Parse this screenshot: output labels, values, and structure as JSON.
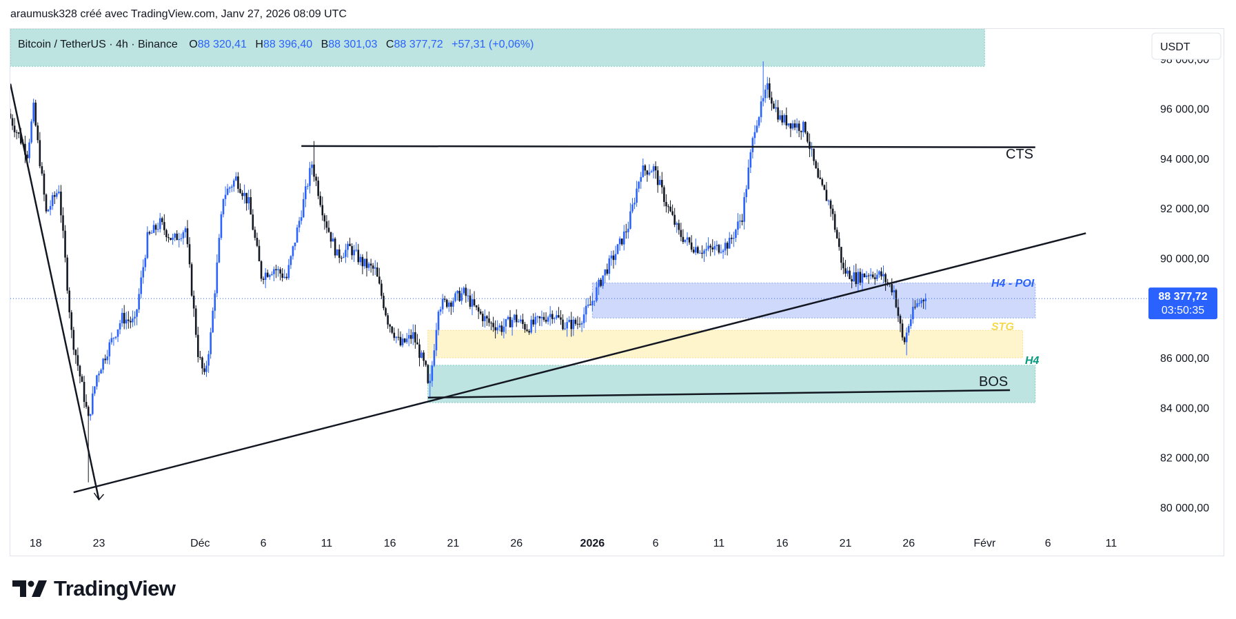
{
  "header": {
    "text": "araumusk328 créé avec TradingView.com, Janv 27, 2026 08:09 UTC"
  },
  "brand": {
    "name": "TradingView"
  },
  "colors": {
    "bull": "#2962ff",
    "bear": "#131722",
    "zone_green": "#b2dfdb",
    "zone_blue": "#c5d2fa",
    "zone_yellow": "#fff3c4",
    "price_label": "#2962ff",
    "text_blue": "#2962ff",
    "text_teal": "#089981",
    "text_yellow": "#f5d94a"
  },
  "legend": {
    "symbol": "Bitcoin / TetherUS · 4h · Binance",
    "o_label": "O",
    "o_value": "88 320,41",
    "h_label": "H",
    "h_value": "88 396,40",
    "b_label": "B",
    "b_value": "88 301,03",
    "c_label": "C",
    "c_value": "88 377,72",
    "change": "+57,31 (+0,06%)"
  },
  "currency_button": "USDT",
  "price_tag": {
    "price": "88 377,72",
    "countdown": "03:50:35"
  },
  "annotations": {
    "cts": "CTS",
    "bos": "BOS",
    "h4_poi": "H4 - POI",
    "stg": "STG",
    "h4": "H4"
  },
  "chart_data": {
    "type": "candlestick",
    "symbol": "Bitcoin / TetherUS",
    "interval": "4h",
    "exchange": "Binance",
    "y_axis": {
      "range": [
        79000,
        99200
      ],
      "ticks": [
        80000,
        82000,
        84000,
        86000,
        88000,
        90000,
        92000,
        94000,
        96000,
        98000
      ],
      "tick_labels": [
        "80 000,00",
        "82 000,00",
        "84 000,00",
        "86 000,00",
        "88 000,00",
        "90 000,00",
        "92 000,00",
        "94 000,00",
        "96 000,00",
        "98 000,00"
      ]
    },
    "x_axis": {
      "range": [
        "2025-11-16",
        "2026-02-14"
      ],
      "ticks": [
        {
          "date": "2025-11-18",
          "label": "18"
        },
        {
          "date": "2025-11-23",
          "label": "23"
        },
        {
          "date": "2025-12-01",
          "label": "Déc"
        },
        {
          "date": "2025-12-06",
          "label": "6"
        },
        {
          "date": "2025-12-11",
          "label": "11"
        },
        {
          "date": "2025-12-16",
          "label": "16"
        },
        {
          "date": "2025-12-21",
          "label": "21"
        },
        {
          "date": "2025-12-26",
          "label": "26"
        },
        {
          "date": "2026-01-01",
          "label": "2026",
          "bold": true
        },
        {
          "date": "2026-01-06",
          "label": "6"
        },
        {
          "date": "2026-01-11",
          "label": "11"
        },
        {
          "date": "2026-01-16",
          "label": "16"
        },
        {
          "date": "2026-01-21",
          "label": "21"
        },
        {
          "date": "2026-01-26",
          "label": "26"
        },
        {
          "date": "2026-02-01",
          "label": "Févr"
        },
        {
          "date": "2026-02-06",
          "label": "6"
        },
        {
          "date": "2026-02-11",
          "label": "11"
        }
      ]
    },
    "price_path": [
      [
        "2025-11-16T00:00",
        95800
      ],
      [
        "2025-11-17T12:00",
        94200
      ],
      [
        "2025-11-18T00:00",
        96000
      ],
      [
        "2025-11-19T00:00",
        91800
      ],
      [
        "2025-11-20T00:00",
        92800
      ],
      [
        "2025-11-21T00:00",
        87000
      ],
      [
        "2025-11-22T00:00",
        84400
      ],
      [
        "2025-11-22T08:00",
        83500
      ],
      [
        "2025-11-23T00:00",
        85300
      ],
      [
        "2025-11-24T00:00",
        86500
      ],
      [
        "2025-11-25T00:00",
        87600
      ],
      [
        "2025-11-26T00:00",
        87400
      ],
      [
        "2025-11-27T00:00",
        90800
      ],
      [
        "2025-11-28T00:00",
        91400
      ],
      [
        "2025-11-29T00:00",
        90700
      ],
      [
        "2025-11-30T00:00",
        91200
      ],
      [
        "2025-12-01T00:00",
        86200
      ],
      [
        "2025-12-01T12:00",
        85200
      ],
      [
        "2025-12-02T00:00",
        86900
      ],
      [
        "2025-12-03T00:00",
        92500
      ],
      [
        "2025-12-04T00:00",
        93200
      ],
      [
        "2025-12-05T00:00",
        92200
      ],
      [
        "2025-12-06T00:00",
        89300
      ],
      [
        "2025-12-07T00:00",
        89600
      ],
      [
        "2025-12-08T00:00",
        89200
      ],
      [
        "2025-12-09T00:00",
        91500
      ],
      [
        "2025-12-10T00:00",
        93800
      ],
      [
        "2025-12-11T00:00",
        91600
      ],
      [
        "2025-12-12T00:00",
        90100
      ],
      [
        "2025-12-13T00:00",
        90400
      ],
      [
        "2025-12-14T00:00",
        89800
      ],
      [
        "2025-12-15T00:00",
        89500
      ],
      [
        "2025-12-16T00:00",
        87500
      ],
      [
        "2025-12-17T00:00",
        86500
      ],
      [
        "2025-12-18T00:00",
        86900
      ],
      [
        "2025-12-19T00:00",
        85500
      ],
      [
        "2025-12-19T06:00",
        84500
      ],
      [
        "2025-12-20T00:00",
        88100
      ],
      [
        "2025-12-21T00:00",
        88300
      ],
      [
        "2025-12-22T00:00",
        88600
      ],
      [
        "2025-12-23T00:00",
        87900
      ],
      [
        "2025-12-24T00:00",
        87400
      ],
      [
        "2025-12-25T00:00",
        87200
      ],
      [
        "2025-12-26T00:00",
        87600
      ],
      [
        "2025-12-27T00:00",
        87200
      ],
      [
        "2025-12-28T00:00",
        87500
      ],
      [
        "2025-12-29T00:00",
        87800
      ],
      [
        "2025-12-30T00:00",
        87300
      ],
      [
        "2025-12-31T00:00",
        87400
      ],
      [
        "2026-01-01T00:00",
        88100
      ],
      [
        "2026-01-02T00:00",
        89300
      ],
      [
        "2026-01-03T00:00",
        90200
      ],
      [
        "2026-01-04T00:00",
        91300
      ],
      [
        "2026-01-05T00:00",
        93500
      ],
      [
        "2026-01-06T00:00",
        93600
      ],
      [
        "2026-01-07T00:00",
        92200
      ],
      [
        "2026-01-08T00:00",
        91000
      ],
      [
        "2026-01-09T00:00",
        90500
      ],
      [
        "2026-01-10T00:00",
        90300
      ],
      [
        "2026-01-11T00:00",
        90400
      ],
      [
        "2026-01-12T00:00",
        90600
      ],
      [
        "2026-01-13T00:00",
        91700
      ],
      [
        "2026-01-14T00:00",
        95300
      ],
      [
        "2026-01-15T00:00",
        96800
      ],
      [
        "2026-01-16T00:00",
        95600
      ],
      [
        "2026-01-17T00:00",
        95400
      ],
      [
        "2026-01-18T00:00",
        95200
      ],
      [
        "2026-01-19T00:00",
        93100
      ],
      [
        "2026-01-20T00:00",
        92100
      ],
      [
        "2026-01-21T00:00",
        89500
      ],
      [
        "2026-01-22T00:00",
        89200
      ],
      [
        "2026-01-23T00:00",
        89400
      ],
      [
        "2026-01-24T00:00",
        89300
      ],
      [
        "2026-01-25T00:00",
        88700
      ],
      [
        "2026-01-25T18:00",
        86500
      ],
      [
        "2026-01-26T06:00",
        87500
      ],
      [
        "2026-01-26T18:00",
        88100
      ],
      [
        "2026-01-27T08:00",
        88377.72
      ]
    ],
    "extremes": [
      [
        "2025-11-22T04:00",
        81000
      ],
      [
        "2025-12-10T00:00",
        94700
      ],
      [
        "2026-01-14T12:00",
        97900
      ],
      [
        "2025-12-19T04:00",
        84400
      ],
      [
        "2026-01-25T20:00",
        86100
      ]
    ],
    "last_price": 88377.72,
    "zones": [
      {
        "name": "top-zone",
        "color": "green",
        "x": [
          "2025-11-16",
          "2026-02-01"
        ],
        "y": [
          97700,
          99200
        ]
      },
      {
        "name": "h4-poi-zone",
        "color": "blue",
        "x": [
          "2026-01-01",
          "2026-02-05"
        ],
        "y": [
          87600,
          89000
        ]
      },
      {
        "name": "stg-zone",
        "color": "yellow",
        "x": [
          "2025-12-19",
          "2026-02-04"
        ],
        "y": [
          86000,
          87100
        ]
      },
      {
        "name": "bos-zone",
        "color": "green",
        "x": [
          "2025-12-19",
          "2026-02-05"
        ],
        "y": [
          84200,
          85700
        ]
      }
    ],
    "lines": [
      {
        "name": "cts-line",
        "from": [
          "2025-12-09",
          94500
        ],
        "to": [
          "2026-02-05",
          94450
        ]
      },
      {
        "name": "bos-line",
        "from": [
          "2025-12-19",
          84400
        ],
        "to": [
          "2026-02-03",
          84700
        ]
      },
      {
        "name": "trendline",
        "from": [
          "2025-11-21",
          80600
        ],
        "to": [
          "2026-02-09",
          91000
        ]
      },
      {
        "name": "down-arrow-line",
        "from": [
          "2025-11-16",
          97000
        ],
        "to": [
          "2025-11-23",
          80300
        ]
      }
    ]
  }
}
